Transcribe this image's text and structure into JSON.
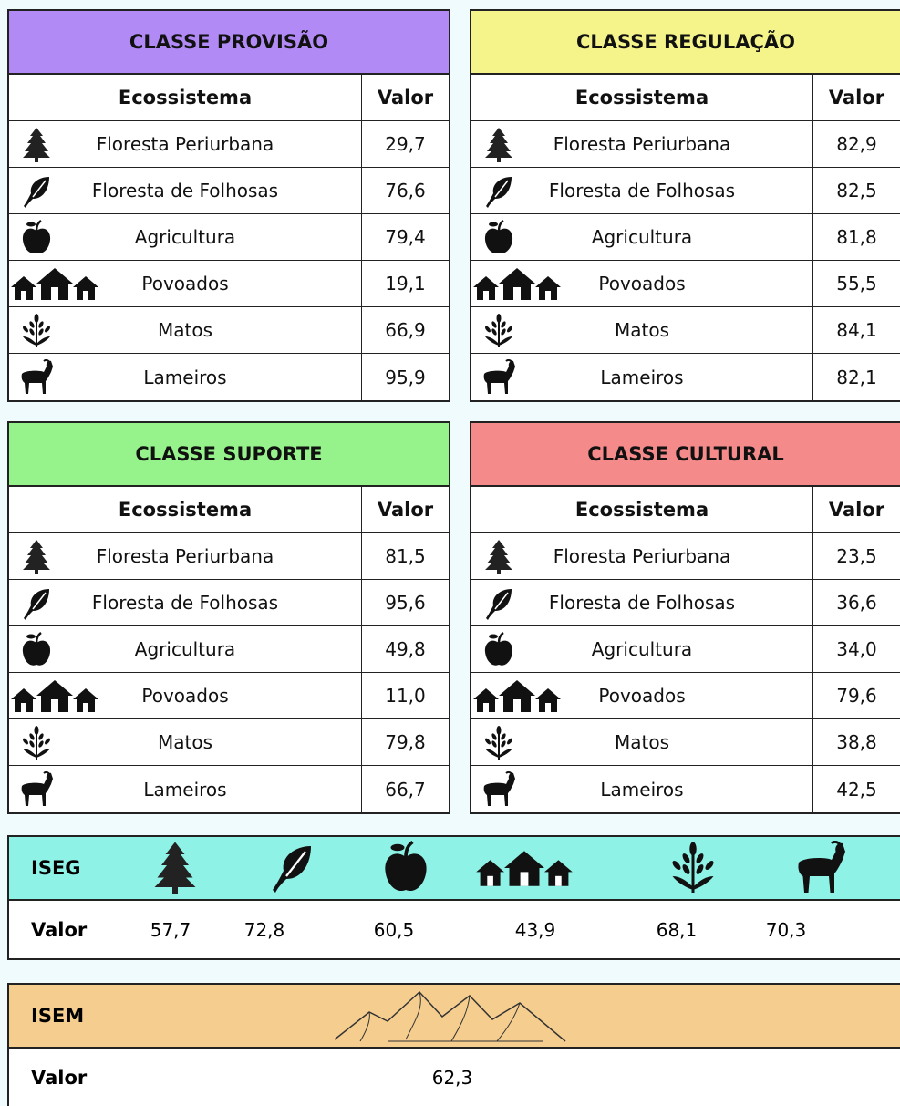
{
  "tables": [
    {
      "title": "CLASSE PROVISÃO",
      "header": [
        "Ecossistema",
        "Valor"
      ],
      "rows": [
        [
          "Floresta Periurbana",
          "29,7"
        ],
        [
          "Floresta de Folhosas",
          "76,6"
        ],
        [
          "Agricultura",
          "79,4"
        ],
        [
          "Povoados",
          "19,1"
        ],
        [
          "Matos",
          "66,9"
        ],
        [
          "Lameiros",
          "95,9"
        ]
      ]
    },
    {
      "title": "CLASSE REGULAÇÃO",
      "header": [
        "Ecossistema",
        "Valor"
      ],
      "rows": [
        [
          "Floresta Periurbana",
          "82,9"
        ],
        [
          "Floresta de Folhosas",
          "82,5"
        ],
        [
          "Agricultura",
          "81,8"
        ],
        [
          "Povoados",
          "55,5"
        ],
        [
          "Matos",
          "84,1"
        ],
        [
          "Lameiros",
          "82,1"
        ]
      ]
    },
    {
      "title": "CLASSE SUPORTE",
      "header": [
        "Ecossistema",
        "Valor"
      ],
      "rows": [
        [
          "Floresta Periurbana",
          "81,5"
        ],
        [
          "Floresta de Folhosas",
          "95,6"
        ],
        [
          "Agricultura",
          "49,8"
        ],
        [
          "Povoados",
          "11,0"
        ],
        [
          "Matos",
          "79,8"
        ],
        [
          "Lameiros",
          "66,7"
        ]
      ]
    },
    {
      "title": "CLASSE CULTURAL",
      "header": [
        "Ecossistema",
        "Valor"
      ],
      "rows": [
        [
          "Floresta Periurbana",
          "23,5"
        ],
        [
          "Floresta de Folhosas",
          "36,6"
        ],
        [
          "Agricultura",
          "34,0"
        ],
        [
          "Povoados",
          "79,6"
        ],
        [
          "Matos",
          "38,8"
        ],
        [
          "Lameiros",
          "42,5"
        ]
      ]
    }
  ],
  "iseg": {
    "label": "ISEG",
    "value_label": "Valor",
    "values": [
      "57,7",
      "72,8",
      "60,5",
      "43,9",
      "68,1",
      "70,3"
    ]
  },
  "isem": {
    "label": "ISEM",
    "value_label": "Valor",
    "value": "62,3"
  }
}
